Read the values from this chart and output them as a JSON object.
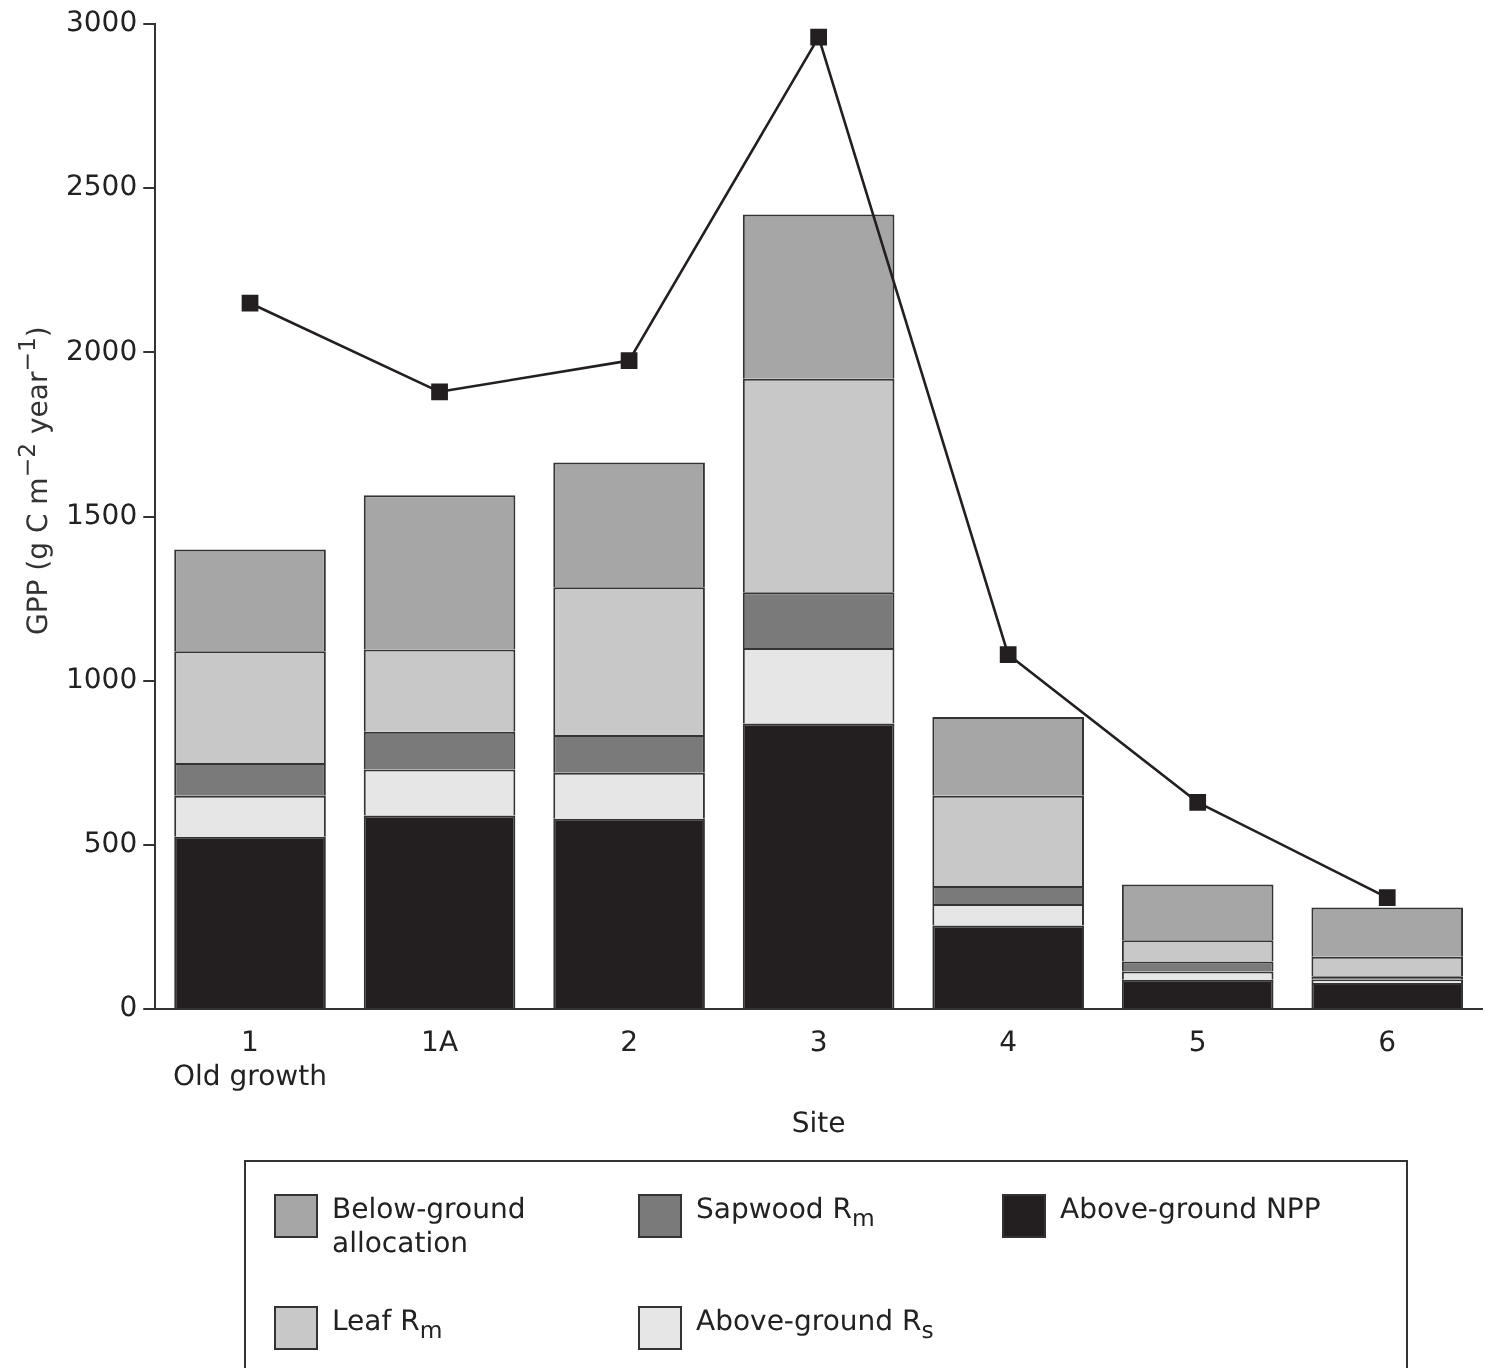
{
  "chart_data": {
    "type": "bar",
    "stacked": true,
    "xlabel": "Site",
    "ylabel": "GPP (g C m$^{−2}$ year$^{−1}$)",
    "categories": [
      "1\nOld growth",
      "1A",
      "2",
      "3",
      "4",
      "5",
      "6"
    ],
    "series": [
      {
        "name": "Above-ground NPP",
        "color": "#231f20",
        "values": [
          525,
          590,
          580,
          870,
          255,
          90,
          80
        ]
      },
      {
        "name": "Above-ground R$_{s}$",
        "color": "#e6e6e6",
        "values": [
          125,
          140,
          140,
          230,
          65,
          25,
          10
        ]
      },
      {
        "name": "Sapwood R$_{m}$",
        "color": "#7a7a7a",
        "values": [
          100,
          115,
          115,
          170,
          55,
          30,
          10
        ]
      },
      {
        "name": "Leaf R$_{m}$",
        "color": "#c8c8c8",
        "values": [
          340,
          250,
          450,
          650,
          275,
          65,
          60
        ]
      },
      {
        "name": "Below-ground allocation",
        "color": "#a6a6a6",
        "values": [
          310,
          470,
          380,
          500,
          240,
          170,
          150
        ]
      },
      {
        "type": "line",
        "color": "#231f20",
        "marker": "square",
        "values": [
          2150,
          1880,
          1975,
          2960,
          1080,
          630,
          340
        ]
      }
    ],
    "ylim": [
      0,
      3000
    ],
    "yticks": [
      0,
      500,
      1000,
      1500,
      2000,
      2500,
      3000
    ],
    "legend": "bottom"
  }
}
